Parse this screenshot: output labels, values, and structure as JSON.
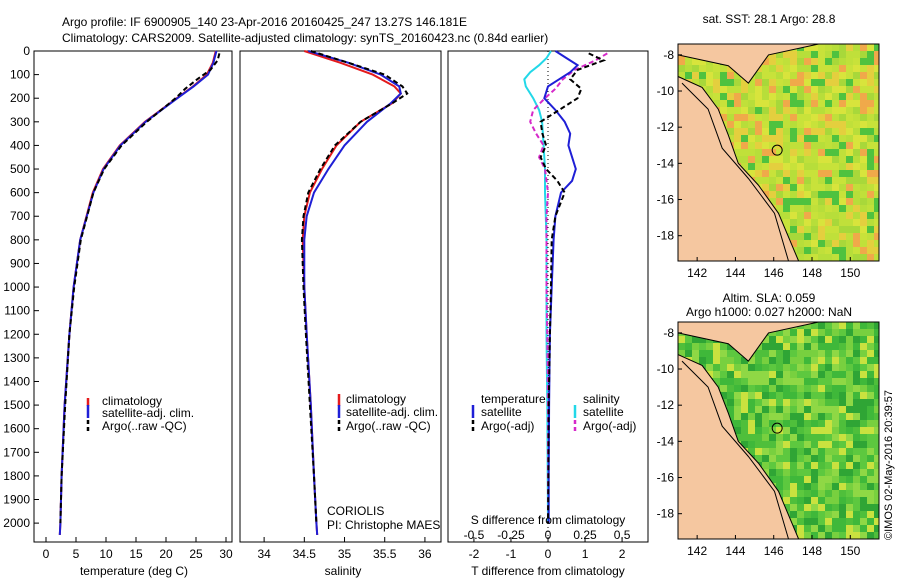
{
  "header": {
    "line1": "Argo profile: IF 6900905_140 23-Apr-2016 20160425_247 13.27S 146.181E",
    "line2": "Climatology: CARS2009. Satellite-adjusted climatology: synTS_20160423.nc (0.84d earlier)"
  },
  "colors": {
    "climatology": "#e41a1c",
    "satellite": "#1f1fd6",
    "argo": "#000000",
    "sal_sat": "#22d8e8",
    "sal_argo": "#d629c9"
  },
  "chart_data": [
    {
      "type": "line",
      "name": "temperature",
      "xlabel": "temperature (deg C)",
      "xlim": [
        -2,
        31
      ],
      "xticks": [
        "0",
        "5",
        "10",
        "15",
        "20",
        "25",
        "30"
      ],
      "ylim": [
        0,
        2080
      ],
      "yticks": [
        "0",
        "100",
        "200",
        "300",
        "400",
        "500",
        "600",
        "700",
        "800",
        "900",
        "1000",
        "1100",
        "1200",
        "1300",
        "1400",
        "1500",
        "1600",
        "1700",
        "1800",
        "1900",
        "2000"
      ],
      "series": [
        {
          "name": "climatology",
          "depth": [
            0,
            50,
            100,
            150,
            200,
            300,
            400,
            500,
            600,
            800,
            1000,
            1200,
            1500,
            1800,
            2000,
            2050
          ],
          "values": [
            28.3,
            27.8,
            26.8,
            24.5,
            21.8,
            16.5,
            12.3,
            9.5,
            7.8,
            5.7,
            4.6,
            3.9,
            3.1,
            2.6,
            2.4,
            2.3
          ]
        },
        {
          "name": "satellite-adj. clim.",
          "depth": [
            0,
            50,
            100,
            150,
            200,
            300,
            400,
            500,
            600,
            800,
            1000,
            1200,
            1500,
            1800,
            2000,
            2050
          ],
          "values": [
            28.4,
            27.9,
            27.0,
            24.6,
            21.9,
            16.6,
            12.4,
            9.6,
            7.9,
            5.7,
            4.6,
            3.9,
            3.1,
            2.6,
            2.4,
            2.3
          ]
        },
        {
          "name": "Argo(..raw -QC)",
          "depth": [
            10,
            40,
            80,
            120,
            160,
            200,
            300,
            400,
            500,
            600,
            800,
            1000,
            1200,
            1500,
            1800,
            2000
          ],
          "values": [
            28.9,
            28.6,
            27.4,
            25.2,
            23.2,
            21.6,
            16.8,
            12.6,
            9.7,
            7.9,
            5.8,
            4.7,
            3.9,
            3.2,
            2.6,
            2.4
          ]
        }
      ],
      "legend": [
        "climatology",
        "satellite-adj. clim.",
        "Argo(..raw -QC)"
      ]
    },
    {
      "type": "line",
      "name": "salinity",
      "xlabel": "salinity",
      "xlim": [
        33.7,
        36.2
      ],
      "xticks": [
        "34",
        "34.5",
        "35",
        "35.5",
        "36"
      ],
      "ylim": [
        0,
        2080
      ],
      "series": [
        {
          "name": "climatology",
          "depth": [
            0,
            50,
            100,
            150,
            180,
            220,
            300,
            400,
            500,
            600,
            700,
            800,
            1000,
            1200,
            1500,
            1800,
            2000,
            2050
          ],
          "values": [
            34.5,
            34.95,
            35.35,
            35.62,
            35.7,
            35.6,
            35.2,
            34.9,
            34.72,
            34.57,
            34.5,
            34.48,
            34.5,
            34.53,
            34.58,
            34.62,
            34.65,
            34.66
          ]
        },
        {
          "name": "satellite-adj. clim.",
          "depth": [
            0,
            50,
            100,
            150,
            180,
            220,
            300,
            400,
            500,
            600,
            700,
            800,
            1000,
            1200,
            1500,
            1800,
            2000,
            2050
          ],
          "values": [
            34.55,
            35.05,
            35.45,
            35.68,
            35.7,
            35.58,
            35.28,
            35.0,
            34.8,
            34.62,
            34.53,
            34.5,
            34.5,
            34.53,
            34.58,
            34.62,
            34.65,
            34.66
          ]
        },
        {
          "name": "Argo(..raw -QC)",
          "depth": [
            0,
            50,
            100,
            150,
            180,
            220,
            300,
            400,
            500,
            600,
            700,
            800,
            1000,
            1200,
            1500,
            1800,
            2000
          ],
          "values": [
            34.58,
            35.05,
            35.5,
            35.72,
            35.78,
            35.6,
            35.2,
            34.88,
            34.7,
            34.55,
            34.49,
            34.47,
            34.49,
            34.52,
            34.57,
            34.62,
            34.65
          ]
        }
      ],
      "legend": [
        "climatology",
        "satellite-adj. clim.",
        "Argo(..raw -QC)"
      ],
      "annotations": [
        "CORIOLIS",
        "PI: Christophe MAES"
      ]
    },
    {
      "type": "line",
      "name": "difference",
      "xlabel": "T difference from climatology",
      "xlabel_top": "S difference from climatology",
      "xlim": [
        -2.7,
        2.7
      ],
      "xticks": [
        "-2",
        "-1",
        "0",
        "1",
        "2"
      ],
      "xticks_top": [
        "-0.5",
        "-0.25",
        "0",
        "0.25",
        "0.5"
      ],
      "ylim": [
        0,
        2080
      ],
      "series": [
        {
          "name": "temperature satellite",
          "kind": "T",
          "depth": [
            0,
            30,
            60,
            90,
            120,
            150,
            200,
            250,
            300,
            350,
            400,
            450,
            500,
            550,
            600,
            700,
            800,
            1000,
            1200,
            1500,
            1800,
            2000
          ],
          "values": [
            0.2,
            0.5,
            0.8,
            0.6,
            0.3,
            0.0,
            -0.1,
            0.2,
            0.45,
            0.6,
            0.55,
            0.65,
            0.75,
            0.65,
            0.35,
            0.2,
            0.15,
            0.1,
            0.05,
            0.03,
            0.02,
            0.02
          ]
        },
        {
          "name": "temperature Argo(-adj)",
          "kind": "T",
          "depth": [
            10,
            40,
            80,
            120,
            160,
            200,
            300,
            350,
            400,
            450,
            500,
            550,
            600,
            700,
            800,
            1000,
            1200,
            1500,
            1800,
            2000
          ],
          "values": [
            1.1,
            1.5,
            0.8,
            0.6,
            0.9,
            0.8,
            -0.2,
            -0.15,
            -0.05,
            -0.2,
            -0.05,
            0.25,
            0.45,
            0.2,
            0.1,
            0.08,
            0.05,
            0.02,
            0.01,
            0.0
          ]
        },
        {
          "name": "salinity satellite",
          "kind": "S",
          "depth": [
            0,
            30,
            60,
            90,
            120,
            150,
            200,
            250,
            300,
            400,
            500,
            600,
            700,
            800,
            1000,
            1200,
            1500,
            2000
          ],
          "values": [
            0.02,
            -0.01,
            -0.06,
            -0.12,
            -0.16,
            -0.15,
            -0.1,
            -0.06,
            -0.04,
            -0.03,
            -0.02,
            -0.02,
            -0.015,
            -0.01,
            -0.01,
            -0.01,
            -0.005,
            0.0
          ]
        },
        {
          "name": "salinity Argo(-adj)",
          "kind": "S",
          "depth": [
            10,
            40,
            80,
            120,
            160,
            200,
            250,
            300,
            350,
            400,
            450,
            500,
            600,
            700,
            800,
            1000,
            1200,
            1500,
            1800,
            2000
          ],
          "values": [
            0.4,
            0.32,
            0.18,
            0.1,
            0.05,
            -0.02,
            -0.1,
            -0.12,
            -0.08,
            -0.03,
            -0.06,
            -0.02,
            0.0,
            -0.01,
            -0.01,
            -0.01,
            -0.005,
            0.0,
            0.0,
            0.0
          ]
        }
      ],
      "legend": {
        "temperature_title": "temperature",
        "salinity_title": "salinity",
        "items": [
          "satellite",
          "Argo(-adj)",
          "satellite",
          "Argo(-adj)"
        ]
      }
    },
    {
      "type": "heatmap",
      "name": "sst-map",
      "title": "sat. SST: 28.1  Argo: 28.8",
      "xticks": [
        "142",
        "144",
        "146",
        "148",
        "150"
      ],
      "yticks": [
        "-8",
        "-10",
        "-12",
        "-14",
        "-16",
        "-18"
      ],
      "float_lon": 146.181,
      "float_lat": -13.27
    },
    {
      "type": "heatmap",
      "name": "sla-map",
      "title1": "Altim. SLA: 0.059",
      "title2": "Argo h1000: 0.027  h2000: NaN",
      "xticks": [
        "142",
        "144",
        "146",
        "148",
        "150"
      ],
      "yticks": [
        "-8",
        "-10",
        "-12",
        "-14",
        "-16",
        "-18"
      ],
      "float_lon": 146.181,
      "float_lat": -13.27
    }
  ],
  "credit": "©IMOS 02-May-2016 20:39:57"
}
